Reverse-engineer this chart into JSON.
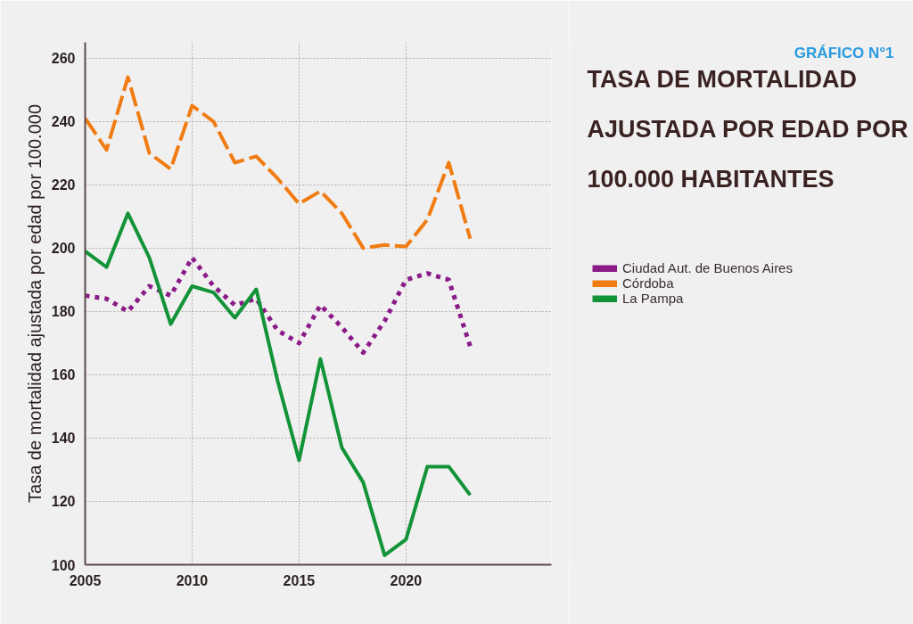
{
  "chart_data": {
    "type": "line",
    "title": "TASA DE MORTALIDAD AJUSTADA POR EDAD POR 100.000 HABITANTES",
    "annotations": [
      "GRÁFICO N°1"
    ],
    "ylabel": "Tasa de mortalidad ajustada por edad por 100.000",
    "x": [
      2005,
      2006,
      2007,
      2008,
      2009,
      2010,
      2011,
      2012,
      2013,
      2014,
      2015,
      2016,
      2017,
      2018,
      2019,
      2020,
      2021,
      2022,
      2023
    ],
    "xlim": [
      2005,
      2026.8
    ],
    "xticks": [
      2005,
      2010,
      2015,
      2020
    ],
    "ylim": [
      100,
      265
    ],
    "yticks": [
      100,
      120,
      140,
      160,
      180,
      200,
      220,
      240,
      260
    ],
    "grid": true,
    "legend": "right",
    "series": [
      {
        "name": "Ciudad Aut. de Buenos Aires",
        "color": "#8b1a89",
        "line_style": "dotted",
        "values": [
          185,
          184,
          180,
          188,
          185,
          197,
          188,
          182,
          184,
          174,
          170,
          182,
          175,
          167,
          177,
          190,
          192,
          190,
          169
        ]
      },
      {
        "name": "Córdoba",
        "color": "#f07c12",
        "line_style": "dashed",
        "values": [
          241,
          231,
          254,
          230,
          225,
          245,
          240,
          227,
          229,
          222,
          214,
          218,
          211,
          200,
          201,
          200.5,
          209,
          227,
          203
        ]
      },
      {
        "name": "La Pampa",
        "color": "#139337",
        "line_style": "solid",
        "values": [
          199,
          194,
          211,
          197,
          176,
          188,
          186,
          178,
          187,
          158,
          133,
          165,
          137,
          126,
          103,
          108,
          131,
          131,
          122
        ]
      }
    ]
  }
}
